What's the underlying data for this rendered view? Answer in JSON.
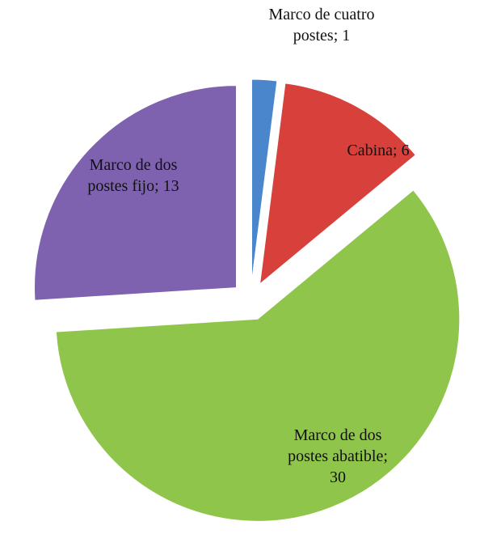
{
  "chart_data": {
    "type": "pie",
    "values": [
      1,
      6,
      30,
      13
    ],
    "value_labels": [
      [
        "Marco de cuatro",
        "postes; 1"
      ],
      [
        "Cabina;  6"
      ],
      [
        "Marco de dos",
        "postes abatible;",
        "30"
      ],
      [
        "Marco de dos",
        "postes fijo;  13"
      ]
    ],
    "colors": [
      "#4a86cc",
      "#d8413b",
      "#8fc54b",
      "#7e62b0"
    ],
    "exploded": true
  }
}
